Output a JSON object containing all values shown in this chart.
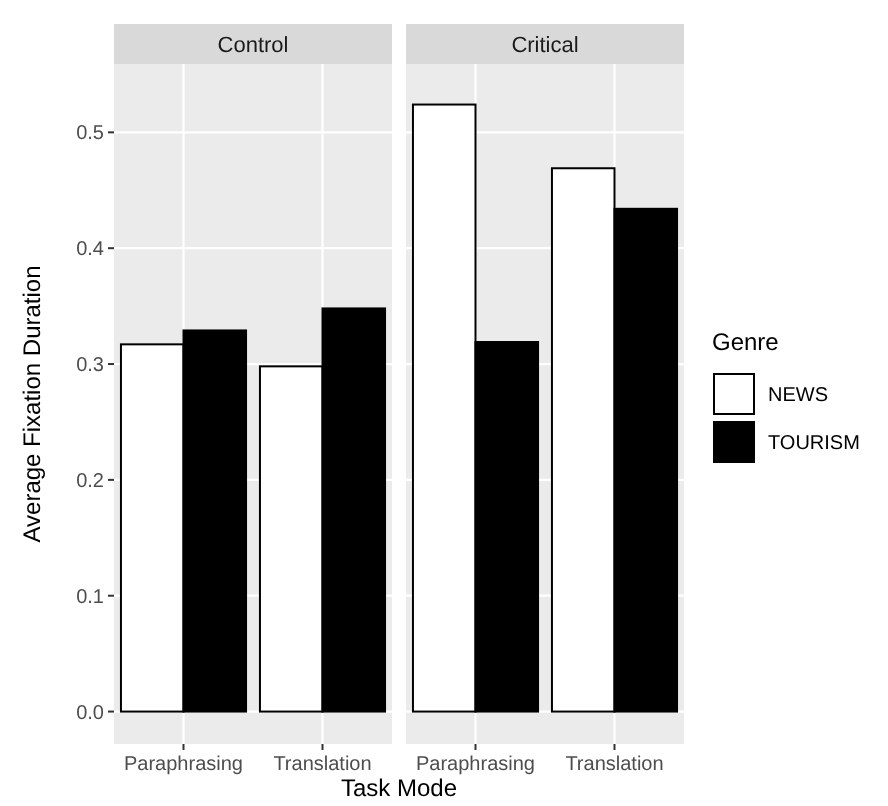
{
  "chart_data": [
    {
      "type": "bar",
      "title": "Control",
      "ylabel": "Average Fixation Duration",
      "xlabel": "Task Mode",
      "categories": [
        "Paraphrasing",
        "Translation"
      ],
      "series": [
        {
          "color": "#ffffff",
          "values": [
            0.317,
            0.298
          ]
        },
        {
          "color": "#000000",
          "values": [
            0.329,
            0.348
          ]
        }
      ],
      "ylim": [
        -0.028,
        0.559
      ],
      "yticks": [
        {
          "value": 0,
          "label": "0.0"
        },
        0.1,
        0.2,
        0.3,
        0.4,
        0.5
      ],
      "grid": true,
      "tick_labels": true
    },
    {
      "type": "bar",
      "title": "Critical",
      "legend_title": "Genre",
      "legend": "right",
      "categories": [
        "Paraphrasing",
        "Translation"
      ],
      "series": [
        {
          "name": "NEWS",
          "color": "#ffffff",
          "values": [
            0.524,
            0.469
          ]
        },
        {
          "name": "TOURISM",
          "color": "#000000",
          "values": [
            0.319,
            0.434
          ]
        }
      ],
      "ylim": [
        -0.028,
        0.559
      ],
      "yticks": [
        0,
        0.1,
        0.2,
        0.3,
        0.4,
        0.5
      ],
      "grid": true,
      "tick_labels": "x"
    }
  ]
}
